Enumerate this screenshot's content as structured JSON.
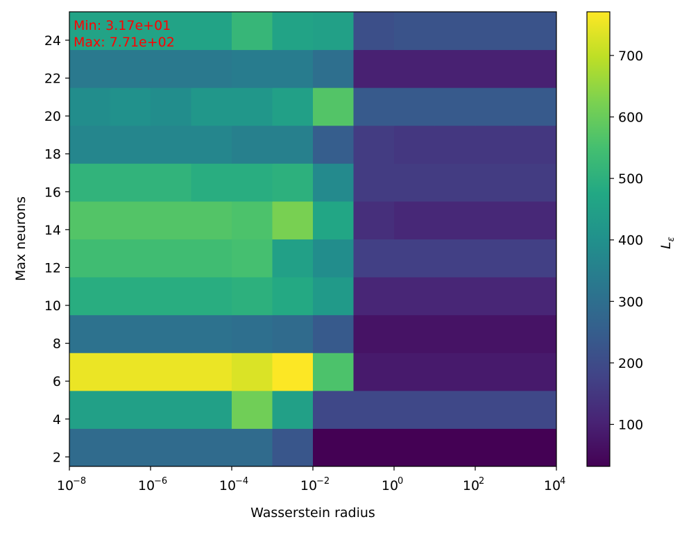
{
  "chart_data": {
    "type": "heatmap",
    "xlabel": "Wasserstein radius",
    "ylabel": "Max neurons",
    "colorbar_label": "L",
    "colorbar_label_sub": "ε",
    "annotation_min": "Min: 3.17e+01",
    "annotation_max": "Max: 7.71e+02",
    "x_scale": "log",
    "x_edges_log10": [
      -8,
      -7,
      -6,
      -5,
      -4,
      -3,
      -2,
      -1,
      0,
      1,
      2,
      3,
      4
    ],
    "x_tick_labels": [
      "10",
      "10",
      "10",
      "10",
      "10",
      "10",
      "10"
    ],
    "x_tick_exponents": [
      "−8",
      "−6",
      "−4",
      "−2",
      "0",
      "2",
      "4"
    ],
    "x_tick_values_log10": [
      -8,
      -6,
      -4,
      -2,
      0,
      2,
      4
    ],
    "y_edges": [
      1.5,
      3.5,
      5.5,
      7.5,
      9.5,
      11.5,
      13.5,
      15.5,
      17.5,
      19.5,
      21.5,
      23.5,
      25.5
    ],
    "y_lim": [
      1.5,
      25.5
    ],
    "y_ticks": [
      "2",
      "4",
      "6",
      "8",
      "10",
      "12",
      "14",
      "16",
      "18",
      "20",
      "22",
      "24"
    ],
    "y_tick_values": [
      2,
      4,
      6,
      8,
      10,
      12,
      14,
      16,
      18,
      20,
      22,
      24
    ],
    "colorbar_ticks": [
      "100",
      "200",
      "300",
      "400",
      "500",
      "600",
      "700"
    ],
    "colorbar_tick_values": [
      100,
      200,
      300,
      400,
      500,
      600,
      700
    ],
    "vmin": 31.7,
    "vmax": 771,
    "colormap": "viridis",
    "values": [
      [
        290,
        290,
        290,
        290,
        290,
        230,
        32,
        32,
        32,
        32,
        32,
        32
      ],
      [
        450,
        450,
        450,
        450,
        610,
        450,
        190,
        190,
        190,
        190,
        190,
        190
      ],
      [
        750,
        750,
        750,
        750,
        730,
        770,
        560,
        85,
        85,
        85,
        85,
        85
      ],
      [
        310,
        310,
        310,
        310,
        300,
        290,
        240,
        70,
        70,
        70,
        70,
        70
      ],
      [
        490,
        490,
        490,
        490,
        500,
        480,
        430,
        110,
        110,
        110,
        110,
        110
      ],
      [
        540,
        540,
        540,
        540,
        550,
        450,
        390,
        170,
        170,
        170,
        170,
        170
      ],
      [
        570,
        570,
        570,
        570,
        560,
        620,
        470,
        130,
        115,
        115,
        115,
        115
      ],
      [
        510,
        510,
        510,
        490,
        490,
        500,
        380,
        160,
        160,
        160,
        160,
        160
      ],
      [
        370,
        370,
        370,
        370,
        350,
        350,
        250,
        160,
        150,
        150,
        150,
        150
      ],
      [
        390,
        400,
        390,
        420,
        420,
        450,
        570,
        240,
        240,
        240,
        240,
        240
      ],
      [
        330,
        330,
        330,
        330,
        340,
        340,
        300,
        100,
        100,
        100,
        100,
        100
      ],
      [
        460,
        460,
        460,
        460,
        520,
        460,
        450,
        210,
        220,
        220,
        220,
        220
      ]
    ]
  }
}
